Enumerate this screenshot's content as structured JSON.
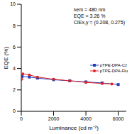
{
  "chart_data": {
    "type": "line",
    "x_label": "Luminance (cd m⁻²)",
    "y_label": "EQE (%)",
    "xlim": [
      0,
      6500
    ],
    "xticks": [
      0,
      2000,
      4000,
      6000
    ],
    "ylim": [
      0,
      10
    ],
    "yticks": [
      0,
      2,
      4,
      6,
      8,
      10
    ],
    "grid": false,
    "legend": "right",
    "annotations": [
      "λem = 480 nm",
      "EQE = 3.26 %",
      "CIEx,y = (0.208, 0.275)"
    ],
    "series": [
      {
        "name": "pTPE-DPA-Cz",
        "color": "#1f3fbf",
        "marker": "square",
        "x": [
          50,
          500,
          1000,
          2000,
          3000,
          4000,
          5000,
          6000
        ],
        "values": [
          3.26,
          3.2,
          3.1,
          2.95,
          2.85,
          2.75,
          2.65,
          2.5
        ]
      },
      {
        "name": "pTPE-DPA-Flu",
        "color": "#e02020",
        "marker": "circle",
        "x": [
          20,
          100,
          500,
          1000,
          2000,
          3000,
          4000,
          5000,
          5600
        ],
        "values": [
          3.0,
          3.5,
          3.4,
          3.2,
          3.0,
          2.85,
          2.7,
          2.6,
          2.55
        ]
      }
    ]
  }
}
